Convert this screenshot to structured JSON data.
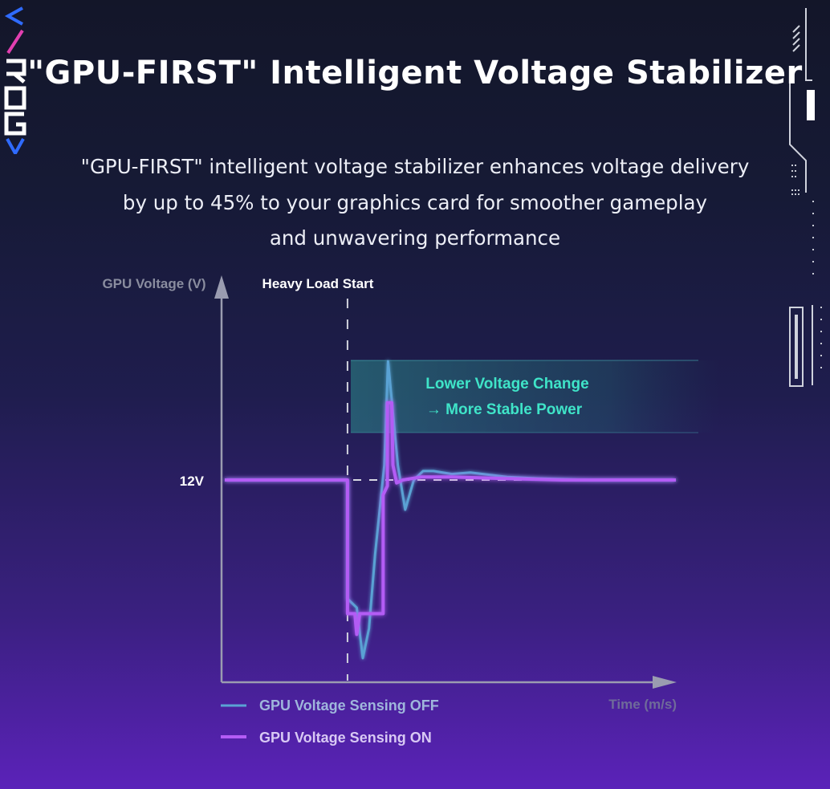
{
  "brand": {
    "logo_text": "ROG",
    "logo_icon": "rog-vertical-logo-icon"
  },
  "title": "\"GPU-FIRST\" Intelligent Voltage Stabilizer",
  "subtitle_lines": [
    "\"GPU-FIRST\" intelligent voltage stabilizer enhances voltage delivery",
    "by up to 45% to your graphics card for smoother gameplay",
    "and unwavering performance"
  ],
  "colors": {
    "series_off": "#5aa2d4",
    "series_on": "#b35cf5",
    "annotation_text": "#3fe4c8"
  },
  "chart_data": {
    "type": "line",
    "ylabel": "GPU Voltage (V)",
    "xlabel": "Time (m/s)",
    "reference_line": {
      "label": "12V",
      "value": 12
    },
    "event_marker": {
      "label": "Heavy Load Start",
      "t": 0
    },
    "annotation": {
      "lines": [
        "Lower Voltage Change",
        "→ More Stable Power"
      ]
    },
    "x_unit": "relative time (unlabeled axis)",
    "series": [
      {
        "name": "GPU Voltage Sensing OFF",
        "points": [
          [
            -20,
            12
          ],
          [
            0,
            12
          ],
          [
            0,
            8.0
          ],
          [
            1.5,
            7.7
          ],
          [
            2.5,
            6.0
          ],
          [
            3.5,
            7.0
          ],
          [
            4.5,
            9.5
          ],
          [
            6.0,
            12.5
          ],
          [
            6.6,
            16.0
          ],
          [
            7.3,
            14.5
          ],
          [
            8.2,
            12.5
          ],
          [
            9.4,
            11.0
          ],
          [
            10.8,
            12.0
          ],
          [
            12.3,
            12.3
          ],
          [
            14.0,
            12.3
          ],
          [
            17.0,
            12.2
          ],
          [
            20.0,
            12.25
          ],
          [
            26.0,
            12.1
          ],
          [
            31.0,
            12.05
          ],
          [
            40.0,
            12.0
          ],
          [
            53.5,
            12.0
          ]
        ]
      },
      {
        "name": "GPU Voltage Sensing ON",
        "points": [
          [
            -20,
            12
          ],
          [
            0,
            12
          ],
          [
            0,
            7.5
          ],
          [
            1.2,
            7.5
          ],
          [
            1.5,
            6.8
          ],
          [
            2.0,
            7.5
          ],
          [
            5.8,
            7.5
          ],
          [
            5.8,
            11.5
          ],
          [
            6.5,
            11.8
          ],
          [
            6.5,
            14.6
          ],
          [
            7.2,
            14.6
          ],
          [
            7.4,
            12.5
          ],
          [
            8.0,
            11.9
          ],
          [
            9.0,
            12.0
          ],
          [
            12.0,
            12.1
          ],
          [
            17.0,
            12.1
          ],
          [
            25.0,
            12.05
          ],
          [
            35.0,
            12.0
          ],
          [
            53.5,
            12.0
          ]
        ]
      }
    ]
  }
}
